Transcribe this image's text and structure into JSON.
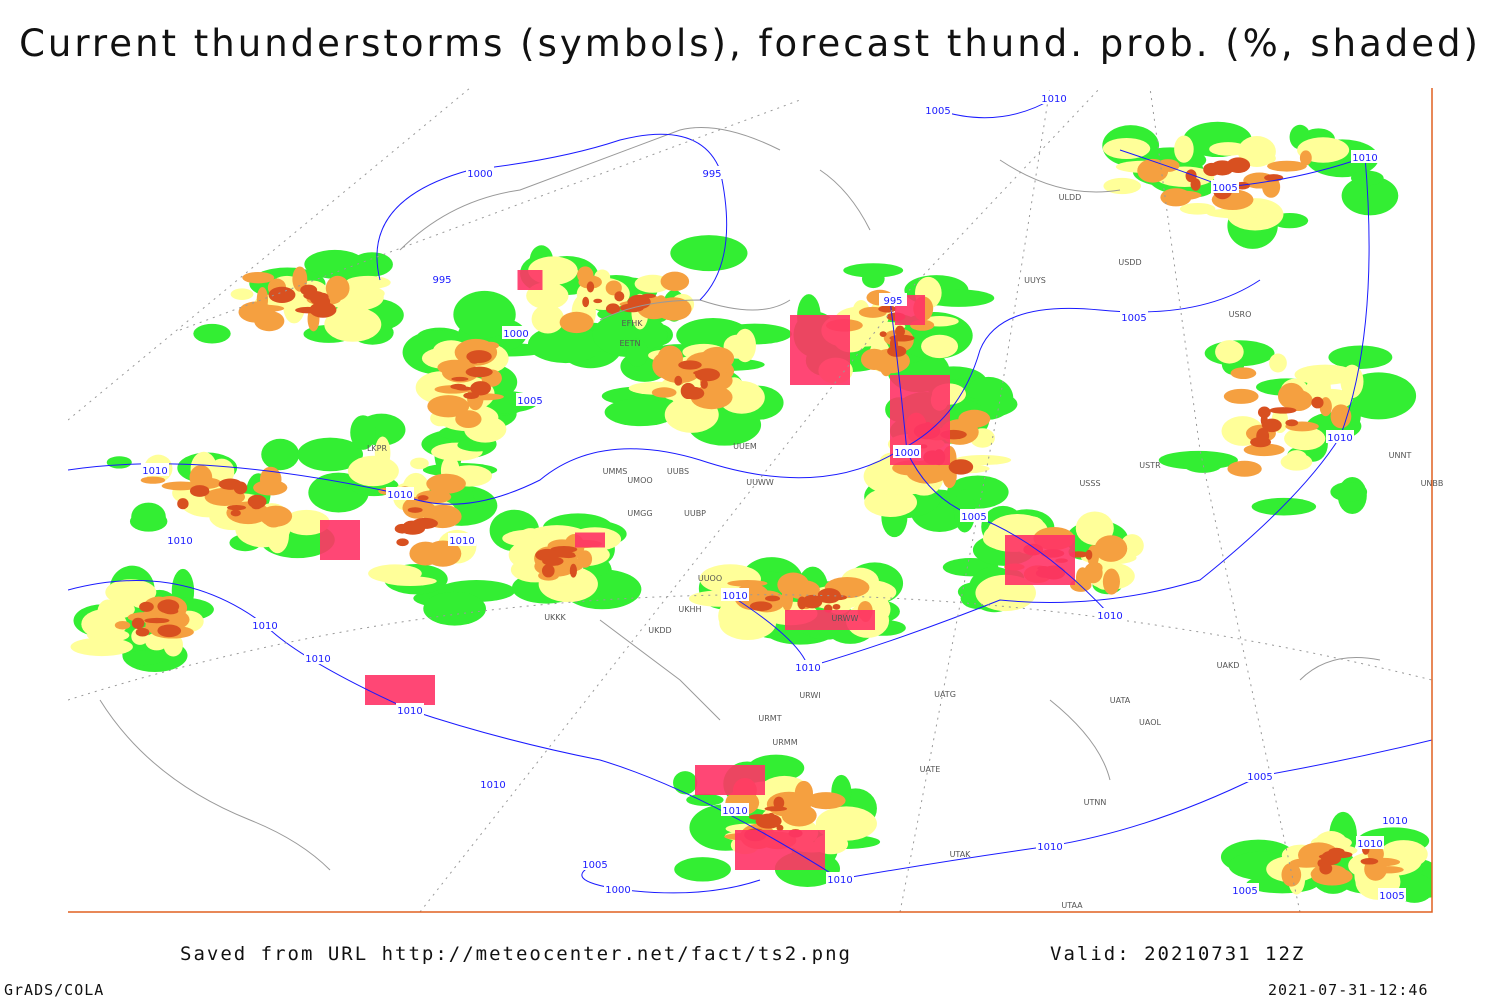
{
  "title": "Current thunderstorms (symbols), forecast thund. prob. (%, shaded)",
  "footer": {
    "source": "Saved from URL http://meteocenter.net/fact/ts2.png",
    "valid": "Valid: 20210731 12Z",
    "software": "GrADS/COLA",
    "timestamp": "2021-07-31-12:46"
  },
  "isobar_labels": [
    "1010",
    "1010",
    "1010",
    "1010",
    "1010",
    "1010",
    "1010",
    "1010",
    "1010",
    "1010",
    "1010",
    "1005",
    "1005",
    "1005",
    "1005",
    "1005",
    "1000",
    "1000",
    "1000",
    "995",
    "995",
    "995",
    "1010",
    "1010",
    "1005",
    "1000",
    "1010",
    "1010",
    "1010",
    "1005",
    "1010",
    "1010",
    "1005",
    "1005",
    "1010"
  ],
  "station_labels": [
    "UMMS",
    "UMOO",
    "UUBS",
    "UUWW",
    "UMGG",
    "UUBP",
    "URWW",
    "UATG",
    "UATA",
    "UAOL",
    "UUYS",
    "USSS",
    "USTR",
    "UNNT",
    "UNBB",
    "UAKD",
    "UUEM",
    "UTNN",
    "UTAK",
    "UTAA",
    "ULDD",
    "USDD",
    "USRO",
    "URWI",
    "URMT",
    "URMM",
    "UATE",
    "EFHK",
    "EETN",
    "LKPR",
    "UKKK",
    "UKDD",
    "UKHH",
    "UUOO"
  ]
}
